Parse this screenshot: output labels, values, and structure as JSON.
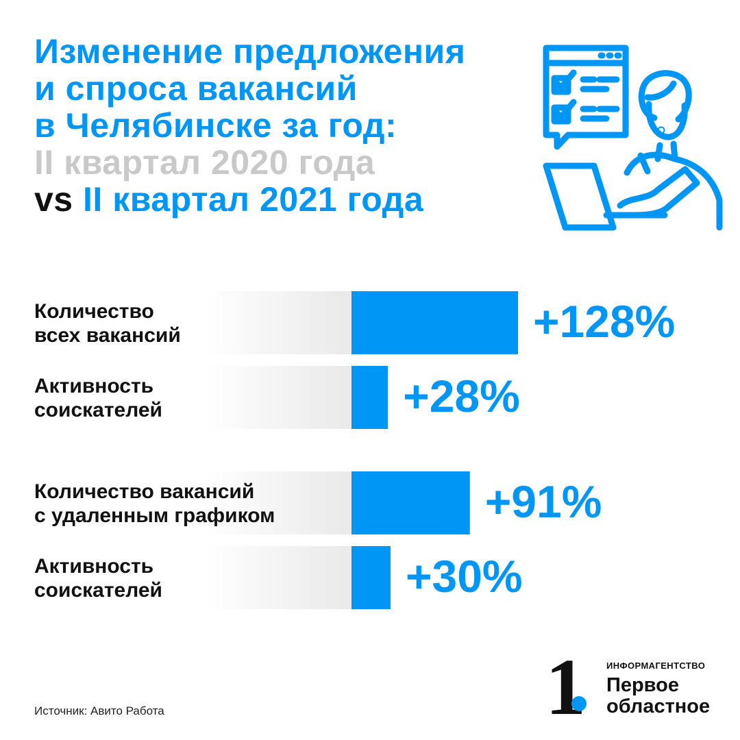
{
  "title": {
    "line1": "Изменение предложения",
    "line2": "и спроса вакансий",
    "line3": "в Челябинске за год:",
    "line4": "II квартал 2020 года",
    "vs": "vs",
    "line5": "II квартал 2021 года"
  },
  "illustration": {
    "icon": "person-with-laptop-checklist-icon",
    "color": "#0096f5"
  },
  "chart_data": {
    "type": "bar",
    "orientation": "horizontal",
    "categories": [
      "Количество\nвсех вакансий",
      "Активность\nсоискателей",
      "Количество вакансий\nс удаленным графиком",
      "Активность\nсоискателей"
    ],
    "values": [
      128,
      28,
      91,
      30
    ],
    "value_labels": [
      "+128%",
      "+28%",
      "+91%",
      "+30%"
    ],
    "bar_color": "#0096f5",
    "track_gradient": [
      "#ffffff",
      "#e9e9e9"
    ]
  },
  "source": "Источник: Авито Работа",
  "logo": {
    "number": "1",
    "small": "ИНФОРМАГЕНТСТВО",
    "line1": "Первое",
    "line2": "областное",
    "dot_color": "#0096f5"
  }
}
